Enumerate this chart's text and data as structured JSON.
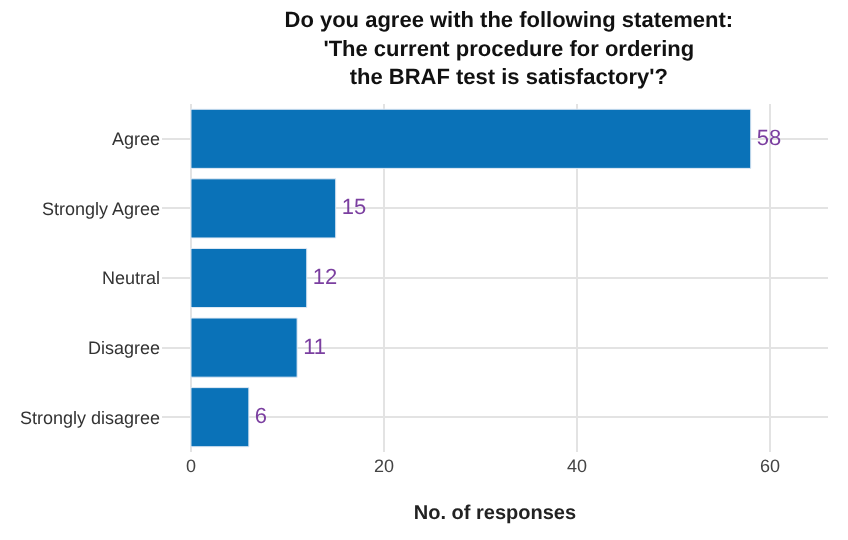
{
  "chart_data": {
    "type": "bar",
    "orientation": "horizontal",
    "title": "Do you agree with the following statement:\n'The current procedure for ordering\nthe BRAF test is satisfactory'?",
    "xlabel": "No. of responses",
    "categories": [
      "Agree",
      "Strongly Agree",
      "Neutral",
      "Disagree",
      "Strongly disagree"
    ],
    "values": [
      58,
      15,
      12,
      11,
      6
    ],
    "color": "#0a72b8",
    "xlim": [
      -3,
      66
    ],
    "xticks": [
      0,
      20,
      40,
      60
    ],
    "grid": true,
    "data_labels": true,
    "legend": false
  }
}
